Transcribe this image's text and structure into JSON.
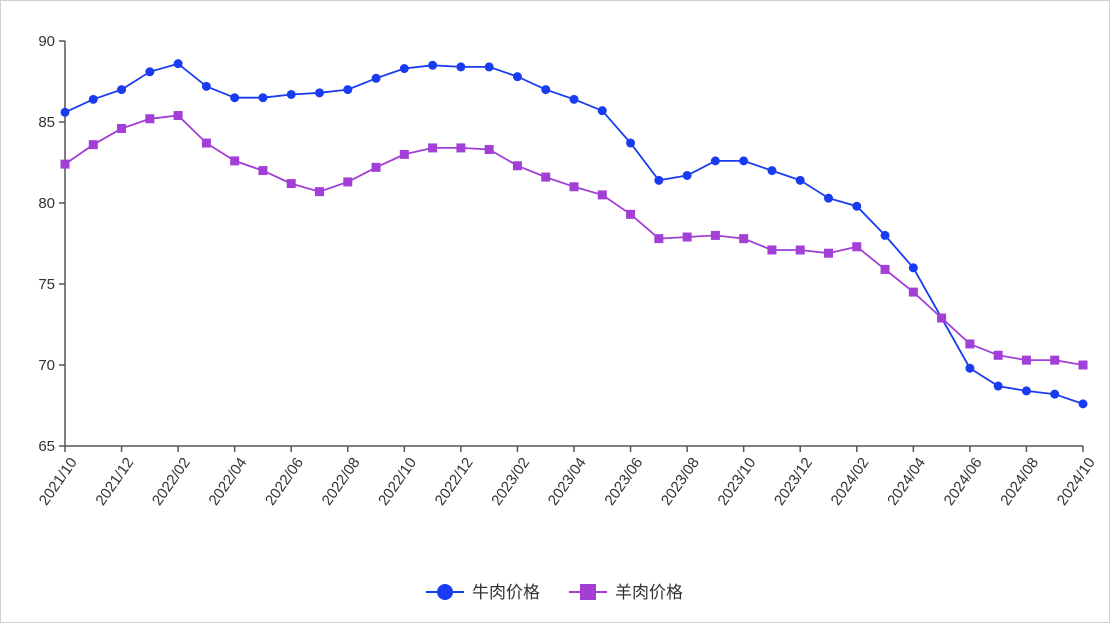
{
  "chart_data": {
    "type": "line",
    "title": "",
    "xlabel": "",
    "ylabel": "",
    "ylim": [
      65,
      90
    ],
    "yticks": [
      65,
      70,
      75,
      80,
      85,
      90
    ],
    "x": [
      "2021/10",
      "2021/11",
      "2021/12",
      "2022/01",
      "2022/02",
      "2022/03",
      "2022/04",
      "2022/05",
      "2022/06",
      "2022/07",
      "2022/08",
      "2022/09",
      "2022/10",
      "2022/11",
      "2022/12",
      "2023/01",
      "2023/02",
      "2023/03",
      "2023/04",
      "2023/05",
      "2023/06",
      "2023/07",
      "2023/08",
      "2023/09",
      "2023/10",
      "2023/11",
      "2023/12",
      "2024/01",
      "2024/02",
      "2024/03",
      "2024/04",
      "2024/05",
      "2024/06",
      "2024/07",
      "2024/08",
      "2024/09",
      "2024/10"
    ],
    "xtick_labels": [
      "2021/10",
      "2021/12",
      "2022/02",
      "2022/04",
      "2022/06",
      "2022/08",
      "2022/10",
      "2022/12",
      "2023/02",
      "2023/04",
      "2023/06",
      "2023/08",
      "2023/10",
      "2023/12",
      "2024/02",
      "2024/04",
      "2024/06",
      "2024/08",
      "2024/10"
    ],
    "series": [
      {
        "name": "牛肉价格",
        "color": "#1a3cf0",
        "marker": "circle",
        "values": [
          85.6,
          86.4,
          87.0,
          88.1,
          88.6,
          87.2,
          86.5,
          86.5,
          86.7,
          86.8,
          87.0,
          87.7,
          88.3,
          88.5,
          88.4,
          88.4,
          87.8,
          87.0,
          86.4,
          85.7,
          83.7,
          81.4,
          81.7,
          82.6,
          82.6,
          82.0,
          81.4,
          80.3,
          79.8,
          78.0,
          76.0,
          72.9,
          69.8,
          68.7,
          68.4,
          68.2,
          67.6
        ]
      },
      {
        "name": "羊肉价格",
        "color": "#a23fd6",
        "marker": "square",
        "values": [
          82.4,
          83.6,
          84.6,
          85.2,
          85.4,
          83.7,
          82.6,
          82.0,
          81.2,
          80.7,
          81.3,
          82.2,
          83.0,
          83.4,
          83.4,
          83.3,
          82.3,
          81.6,
          81.0,
          80.5,
          79.3,
          77.8,
          77.9,
          78.0,
          77.8,
          77.1,
          77.1,
          76.9,
          77.3,
          75.9,
          74.5,
          72.9,
          71.3,
          70.6,
          70.3,
          70.3,
          70.0
        ]
      }
    ],
    "legend": "bottom-center",
    "axis_color": "#555555",
    "grid": false
  }
}
